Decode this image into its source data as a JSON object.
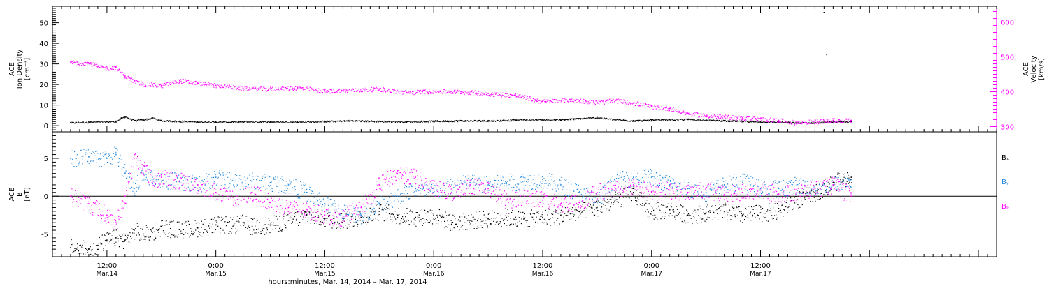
{
  "chart_data": [
    {
      "type": "scatter",
      "panel": "density-velocity",
      "ylabel_lines": [
        "ACE",
        "Ion Density",
        "[cm⁻³]"
      ],
      "y2label_lines": [
        "ACE",
        "Velocity",
        "[km/s]"
      ],
      "ylim": [
        -3,
        58
      ],
      "y_ticks": [
        0,
        10,
        20,
        30,
        40,
        50
      ],
      "y2lim": [
        285,
        645
      ],
      "y2_ticks": [
        300,
        400,
        500,
        600
      ],
      "series": [
        {
          "axis": "left",
          "color": "#000000",
          "points": [
            [
              8,
              1.5
            ],
            [
              10,
              1.8
            ],
            [
              11,
              2.0
            ],
            [
              12,
              2.0
            ],
            [
              13,
              2.2
            ],
            [
              13.6,
              3.8
            ],
            [
              14,
              4.5
            ],
            [
              15,
              2.5
            ],
            [
              16,
              3.0
            ],
            [
              17,
              3.8
            ],
            [
              18,
              2.5
            ],
            [
              20,
              2.2
            ],
            [
              22,
              2.0
            ],
            [
              24,
              1.8
            ],
            [
              27,
              2.0
            ],
            [
              30,
              2.0
            ],
            [
              33,
              1.8
            ],
            [
              36,
              2.2
            ],
            [
              39,
              2.5
            ],
            [
              42,
              2.2
            ],
            [
              45,
              2.0
            ],
            [
              48,
              2.3
            ],
            [
              51,
              2.5
            ],
            [
              54,
              2.5
            ],
            [
              57,
              2.8
            ],
            [
              60,
              3.0
            ],
            [
              62,
              3.0
            ],
            [
              64,
              3.5
            ],
            [
              66,
              4.0
            ],
            [
              68,
              3.0
            ],
            [
              70,
              2.5
            ],
            [
              72,
              2.8
            ],
            [
              74,
              3.0
            ],
            [
              76,
              3.2
            ],
            [
              78,
              2.8
            ],
            [
              80,
              2.5
            ],
            [
              82,
              2.2
            ],
            [
              84,
              2.0
            ],
            [
              86,
              1.8
            ],
            [
              88,
              1.5
            ],
            [
              90,
              1.5
            ],
            [
              92,
              1.8
            ],
            [
              94,
              2.0
            ]
          ]
        },
        {
          "axis": "left",
          "color": "#000000",
          "points": [
            [
              91,
              55
            ],
            [
              91.3,
              34.5
            ]
          ]
        },
        {
          "axis": "right",
          "color": "#ff00ff",
          "points": [
            [
              8,
              485
            ],
            [
              10,
              482
            ],
            [
              11,
              472
            ],
            [
              12,
              468
            ],
            [
              13,
              470
            ],
            [
              14,
              445
            ],
            [
              15,
              430
            ],
            [
              16,
              422
            ],
            [
              18,
              418
            ],
            [
              20,
              432
            ],
            [
              22,
              425
            ],
            [
              24,
              418
            ],
            [
              27,
              410
            ],
            [
              30,
              408
            ],
            [
              33,
              412
            ],
            [
              36,
              402
            ],
            [
              39,
              405
            ],
            [
              42,
              408
            ],
            [
              45,
              398
            ],
            [
              48,
              402
            ],
            [
              51,
              400
            ],
            [
              54,
              395
            ],
            [
              57,
              390
            ],
            [
              60,
              372
            ],
            [
              63,
              378
            ],
            [
              66,
              370
            ],
            [
              68,
              375
            ],
            [
              70,
              368
            ],
            [
              72,
              358
            ],
            [
              74,
              352
            ],
            [
              76,
              338
            ],
            [
              78,
              332
            ],
            [
              80,
              328
            ],
            [
              82,
              325
            ],
            [
              84,
              322
            ],
            [
              86,
              318
            ],
            [
              88,
              312
            ],
            [
              90,
              315
            ],
            [
              92,
              318
            ],
            [
              94,
              318
            ]
          ]
        }
      ]
    },
    {
      "type": "scatter",
      "panel": "magnetic-field",
      "ylabel_lines": [
        "ACE",
        "B",
        "[nT]"
      ],
      "ylim": [
        -8,
        8.5
      ],
      "y_ticks": [
        -5,
        0,
        5
      ],
      "zero_line": true,
      "legend": [
        {
          "label": "Bₓ",
          "color": "#000000"
        },
        {
          "label": "Bᵧ",
          "color": "#2288dd"
        },
        {
          "label": "Bₔ",
          "color": "#ff00ff"
        }
      ],
      "series": [
        {
          "name": "Bₓ",
          "color": "#000000",
          "points": [
            [
              8,
              -6.8
            ],
            [
              10,
              -7.0
            ],
            [
              11,
              -6.5
            ],
            [
              12,
              -5.8
            ],
            [
              13,
              -5.5
            ],
            [
              14,
              -5.8
            ],
            [
              15,
              -4.5
            ],
            [
              16,
              -5.0
            ],
            [
              17,
              -4.8
            ],
            [
              18,
              -4.0
            ],
            [
              19,
              -4.3
            ],
            [
              20,
              -4.4
            ],
            [
              22,
              -4.2
            ],
            [
              24,
              -3.8
            ],
            [
              26,
              -3.8
            ],
            [
              27,
              -3.5
            ],
            [
              28,
              -4.0
            ],
            [
              30,
              -3.8
            ],
            [
              32,
              -3.2
            ],
            [
              34,
              -2.5
            ],
            [
              36,
              -3.0
            ],
            [
              38,
              -3.2
            ],
            [
              40,
              -2.8
            ],
            [
              42,
              -2.0
            ],
            [
              44,
              -2.5
            ],
            [
              46,
              -2.8
            ],
            [
              48,
              -2.5
            ],
            [
              50,
              -3.5
            ],
            [
              52,
              -3.2
            ],
            [
              54,
              -3.0
            ],
            [
              56,
              -2.8
            ],
            [
              58,
              -3.0
            ],
            [
              60,
              -2.8
            ],
            [
              62,
              -2.5
            ],
            [
              64,
              -2.0
            ],
            [
              66,
              -1.5
            ],
            [
              68,
              -0.5
            ],
            [
              70,
              0.5
            ],
            [
              71,
              -1.0
            ],
            [
              72,
              -2.0
            ],
            [
              74,
              -1.8
            ],
            [
              76,
              -2.5
            ],
            [
              78,
              -2.2
            ],
            [
              80,
              -2.0
            ],
            [
              82,
              -2.5
            ],
            [
              84,
              -2.2
            ],
            [
              86,
              -2.0
            ],
            [
              88,
              -0.5
            ],
            [
              90,
              0.5
            ],
            [
              92,
              1.8
            ],
            [
              94,
              2.5
            ]
          ]
        },
        {
          "name": "Bᵧ",
          "color": "#2288dd",
          "points": [
            [
              8,
              5.0
            ],
            [
              10,
              5.2
            ],
            [
              12,
              5.0
            ],
            [
              13,
              5.5
            ],
            [
              14,
              3.0
            ],
            [
              15,
              1.0
            ],
            [
              16,
              3.0
            ],
            [
              17,
              2.5
            ],
            [
              18,
              2.0
            ],
            [
              20,
              2.0
            ],
            [
              22,
              1.5
            ],
            [
              24,
              2.5
            ],
            [
              26,
              2.0
            ],
            [
              28,
              2.0
            ],
            [
              30,
              1.8
            ],
            [
              32,
              1.5
            ],
            [
              34,
              0.5
            ],
            [
              36,
              -1.0
            ],
            [
              38,
              -2.0
            ],
            [
              40,
              -2.5
            ],
            [
              42,
              -1.0
            ],
            [
              44,
              0.0
            ],
            [
              46,
              1.0
            ],
            [
              48,
              0.5
            ],
            [
              50,
              1.5
            ],
            [
              52,
              1.8
            ],
            [
              54,
              1.5
            ],
            [
              56,
              1.8
            ],
            [
              58,
              2.0
            ],
            [
              60,
              2.2
            ],
            [
              62,
              1.5
            ],
            [
              64,
              0.5
            ],
            [
              66,
              -0.5
            ],
            [
              68,
              2.0
            ],
            [
              70,
              2.5
            ],
            [
              72,
              2.5
            ],
            [
              74,
              1.5
            ],
            [
              76,
              1.0
            ],
            [
              78,
              0.5
            ],
            [
              80,
              1.5
            ],
            [
              82,
              2.0
            ],
            [
              84,
              1.0
            ],
            [
              86,
              1.0
            ],
            [
              88,
              1.5
            ],
            [
              90,
              1.0
            ],
            [
              92,
              1.5
            ],
            [
              94,
              2.2
            ]
          ]
        },
        {
          "name": "Bₔ",
          "color": "#ff00ff",
          "points": [
            [
              8,
              0.0
            ],
            [
              10,
              -1.0
            ],
            [
              12,
              -2.5
            ],
            [
              13,
              -3.5
            ],
            [
              14,
              0.0
            ],
            [
              15,
              5.0
            ],
            [
              16,
              4.0
            ],
            [
              17,
              2.0
            ],
            [
              18,
              2.5
            ],
            [
              20,
              2.0
            ],
            [
              22,
              1.5
            ],
            [
              24,
              0.5
            ],
            [
              26,
              -0.5
            ],
            [
              28,
              0.5
            ],
            [
              30,
              -0.8
            ],
            [
              32,
              -1.5
            ],
            [
              34,
              -2.0
            ],
            [
              36,
              -2.5
            ],
            [
              38,
              -2.8
            ],
            [
              40,
              -1.5
            ],
            [
              42,
              1.5
            ],
            [
              44,
              3.0
            ],
            [
              46,
              2.5
            ],
            [
              48,
              1.0
            ],
            [
              50,
              0.5
            ],
            [
              52,
              1.5
            ],
            [
              54,
              1.0
            ],
            [
              56,
              -0.5
            ],
            [
              58,
              0.0
            ],
            [
              60,
              -0.5
            ],
            [
              62,
              -1.0
            ],
            [
              64,
              -0.8
            ],
            [
              66,
              0.5
            ],
            [
              68,
              1.0
            ],
            [
              70,
              1.5
            ],
            [
              72,
              0.5
            ],
            [
              74,
              0.8
            ],
            [
              76,
              0.5
            ],
            [
              78,
              0.8
            ],
            [
              80,
              0.2
            ],
            [
              82,
              0.5
            ],
            [
              84,
              0.8
            ],
            [
              86,
              0.3
            ],
            [
              88,
              0.5
            ],
            [
              90,
              1.0
            ],
            [
              92,
              1.5
            ],
            [
              94,
              0.0
            ]
          ]
        }
      ]
    }
  ],
  "x_axis": {
    "range": [
      6,
      110
    ],
    "major_ticks": [
      {
        "x": 12,
        "time": "12:00",
        "date": "Mar.14"
      },
      {
        "x": 24,
        "time": "0:00",
        "date": "Mar.15"
      },
      {
        "x": 36,
        "time": "12:00",
        "date": "Mar.15"
      },
      {
        "x": 48,
        "time": "0:00",
        "date": "Mar.16"
      },
      {
        "x": 60,
        "time": "12:00",
        "date": "Mar.16"
      },
      {
        "x": 72,
        "time": "0:00",
        "date": "Mar.17"
      },
      {
        "x": 84,
        "time": "12:00",
        "date": "Mar.17"
      }
    ],
    "xlabel": "hours:minutes, Mar. 14, 2014 – Mar. 17, 2014"
  }
}
